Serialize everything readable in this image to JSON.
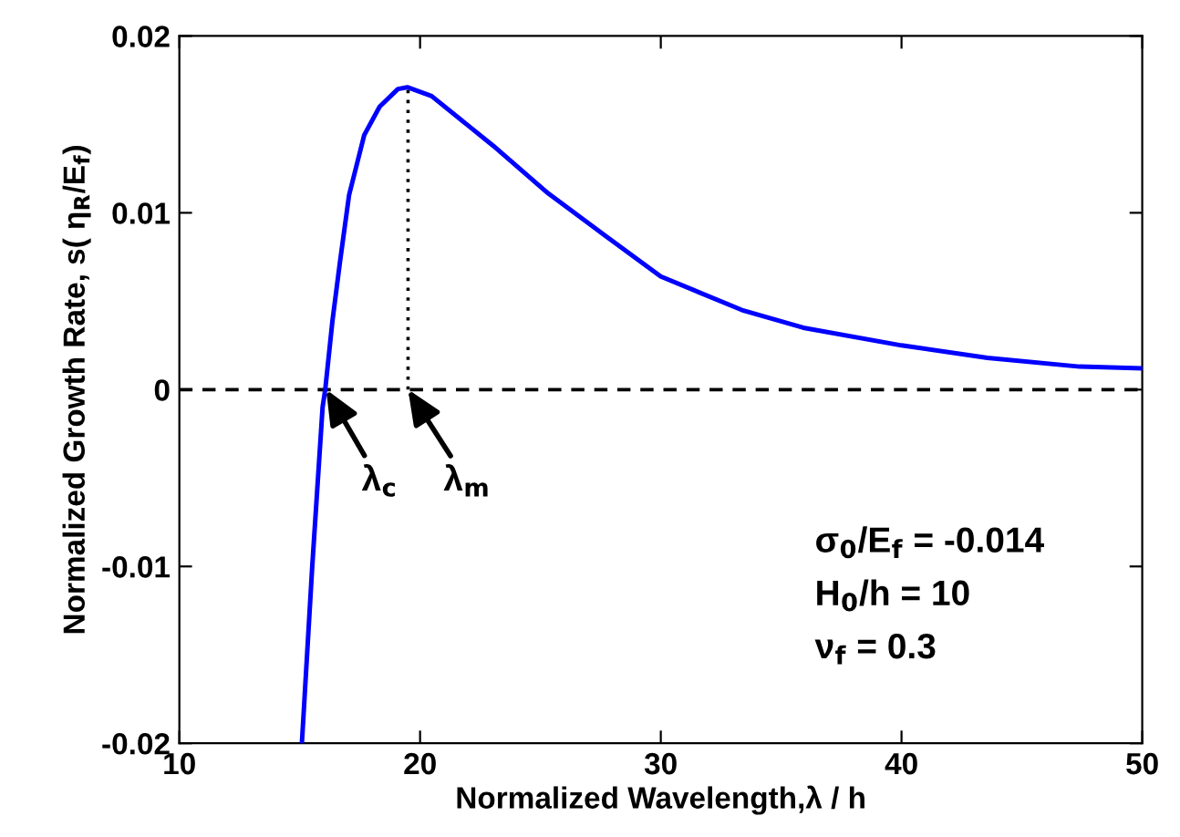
{
  "chart_data": {
    "type": "line",
    "xlabel": "Normalized Wavelength,λ / h",
    "ylabel": "Normalized Growth Rate, s( η$_{R}$/E$_{f}$)",
    "series": [
      {
        "color": "#0000ff",
        "line_style": "solid",
        "x": [
          15.09,
          15.52,
          15.95,
          16.06,
          16.36,
          16.67,
          17.05,
          17.68,
          18.32,
          19.08,
          19.47,
          20.48,
          23.03,
          25.32,
          27.6,
          30.0,
          33.37,
          35.92,
          40.0,
          43.57,
          47.4,
          50.0
        ],
        "values": [
          -0.02,
          -0.01,
          -0.001,
          0.0,
          0.0039,
          0.0072,
          0.011,
          0.0144,
          0.016,
          0.017,
          0.0171,
          0.0166,
          0.0138,
          0.0111,
          0.0088,
          0.0064,
          0.0045,
          0.0035,
          0.0025,
          0.0018,
          0.0013,
          0.0012
        ]
      },
      {
        "color": "#000000",
        "line_style": "dotted",
        "x": [
          19.5,
          19.5
        ],
        "values": [
          0.0,
          0.0171
        ]
      }
    ],
    "ref_lines": [
      {
        "axis": "y",
        "value": 0,
        "color": "#000000",
        "line_style": "dashed"
      }
    ],
    "annotations": [
      {
        "text": "λ$_{c}$",
        "x": 16.1,
        "y": 0
      },
      {
        "text": "λ$_{m}$",
        "x": 19.5,
        "y": 0
      },
      "σ$_{0}$/E$_{f}$ = -0.014",
      "H$_{0}$/h = 10",
      "ν$_{f}$ = 0.3"
    ],
    "xlim": [
      10,
      50
    ],
    "xticks": [
      10,
      20,
      30,
      40,
      50
    ],
    "ylim": [
      -0.02,
      0.02
    ],
    "yticks": [
      -0.02,
      -0.01,
      0,
      0.01,
      0.02
    ],
    "grid": false,
    "legend": false,
    "marker": "none"
  }
}
